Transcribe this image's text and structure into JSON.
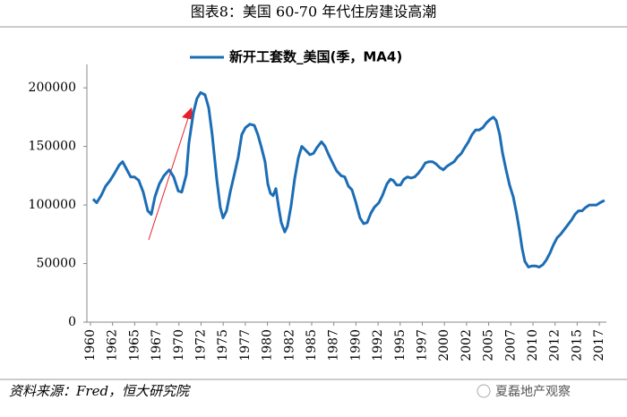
{
  "chart_data": {
    "type": "line",
    "title": "图表8：美国 60-70 年代住房建设高潮",
    "source": "资料来源：Fred，恒大研究院",
    "watermark": "夏磊地产观察",
    "x": [
      1960.3,
      1960.71,
      1961.21,
      1961.72,
      1962.23,
      1962.73,
      1963.24,
      1963.64,
      1964.05,
      1964.55,
      1964.96,
      1965.46,
      1965.97,
      1966.48,
      1966.88,
      1967.29,
      1967.79,
      1968.3,
      1968.91,
      1969.41,
      1969.92,
      1970.32,
      1970.83,
      1971.13,
      1971.64,
      1972.04,
      1972.45,
      1972.95,
      1973.36,
      1973.76,
      1974.27,
      1974.67,
      1974.98,
      1975.38,
      1975.79,
      1976.29,
      1976.7,
      1977.1,
      1977.51,
      1978.01,
      1978.52,
      1978.92,
      1979.33,
      1979.73,
      1980.04,
      1980.34,
      1980.64,
      1980.95,
      1981.25,
      1981.56,
      1981.96,
      1982.26,
      1982.67,
      1983.07,
      1983.48,
      1983.88,
      1984.29,
      1984.79,
      1985.2,
      1985.6,
      1986.11,
      1986.51,
      1986.92,
      1987.43,
      1987.83,
      1988.34,
      1988.74,
      1989.15,
      1989.55,
      1989.96,
      1990.46,
      1990.87,
      1991.27,
      1991.68,
      1992.08,
      1992.59,
      1992.99,
      1993.5,
      1993.9,
      1994.21,
      1994.61,
      1995.02,
      1995.42,
      1995.83,
      1996.23,
      1996.64,
      1997.04,
      1997.44,
      1997.85,
      1998.25,
      1998.66,
      1999.06,
      1999.47,
      1999.87,
      2000.28,
      2000.68,
      2001.09,
      2001.49,
      2001.9,
      2002.3,
      2002.71,
      2003.11,
      2003.52,
      2003.92,
      2004.33,
      2004.73,
      2005.14,
      2005.54,
      2005.85,
      2006.25,
      2006.55,
      2006.96,
      2007.36,
      2007.77,
      2008.17,
      2008.48,
      2008.78,
      2009.08,
      2009.49,
      2009.89,
      2010.3,
      2010.7,
      2011.11,
      2011.51,
      2011.92,
      2012.32,
      2012.73,
      2013.13,
      2013.53,
      2013.94,
      2014.34,
      2014.75,
      2015.15,
      2015.56,
      2015.96,
      2016.37,
      2016.77,
      2017.18,
      2017.58,
      2018.09
    ],
    "series": [
      {
        "name": "新开工套数_美国(季，MA4)",
        "color": "#1b6db5",
        "values": [
          105000,
          102000,
          108000,
          116000,
          121000,
          127000,
          134000,
          137000,
          131000,
          124000,
          124000,
          121000,
          111000,
          95000,
          92000,
          107000,
          118000,
          125000,
          130000,
          124000,
          112000,
          111000,
          126000,
          153000,
          179000,
          191000,
          196000,
          194000,
          183000,
          160000,
          122000,
          98000,
          89000,
          95000,
          111000,
          127000,
          141000,
          160000,
          166000,
          169000,
          168000,
          160000,
          149000,
          137000,
          118000,
          110000,
          108000,
          114000,
          99000,
          85000,
          77000,
          82000,
          99000,
          122000,
          140000,
          150000,
          147000,
          143000,
          144000,
          149000,
          154000,
          150000,
          143000,
          135000,
          129000,
          125000,
          124000,
          116000,
          113000,
          103000,
          89000,
          84000,
          85000,
          93000,
          98000,
          102000,
          108000,
          118000,
          122000,
          121000,
          117000,
          117000,
          122000,
          124000,
          123000,
          124000,
          127000,
          131000,
          136000,
          137000,
          137000,
          135000,
          132000,
          130000,
          133000,
          135000,
          137000,
          141000,
          144000,
          149000,
          154000,
          160000,
          164000,
          164000,
          166000,
          170000,
          173000,
          175000,
          172000,
          160000,
          145000,
          130000,
          117000,
          107000,
          92000,
          78000,
          63000,
          52000,
          47000,
          48000,
          48000,
          47000,
          49000,
          53000,
          59000,
          66000,
          72000,
          75000,
          79000,
          83000,
          87000,
          92000,
          95000,
          95000,
          98000,
          100000,
          100000,
          100000,
          102000,
          104000
        ]
      }
    ],
    "xlim": [
      1959.6,
      2018.3
    ],
    "xticks": [
      1960,
      {
        "value": 1962.5,
        "label": "1962"
      },
      1965,
      {
        "value": 1967.5,
        "label": "1967"
      },
      1970,
      {
        "value": 1972.5,
        "label": "1972"
      },
      1975,
      {
        "value": 1977.5,
        "label": "1977"
      },
      1980,
      {
        "value": 1982.5,
        "label": "1982"
      },
      1985,
      {
        "value": 1987.5,
        "label": "1987"
      },
      1990,
      {
        "value": 1992.5,
        "label": "1992"
      },
      1995,
      {
        "value": 1997.5,
        "label": "1997"
      },
      2000,
      {
        "value": 2002.5,
        "label": "2002"
      },
      2005,
      {
        "value": 2007.5,
        "label": "2007"
      },
      2010,
      {
        "value": 2012.5,
        "label": "2012"
      },
      2015,
      {
        "value": 2017.5,
        "label": "2017"
      }
    ],
    "ylim": [
      0,
      220000
    ],
    "yticks": [
      0,
      50000,
      100000,
      150000,
      200000
    ],
    "grid": false
  }
}
